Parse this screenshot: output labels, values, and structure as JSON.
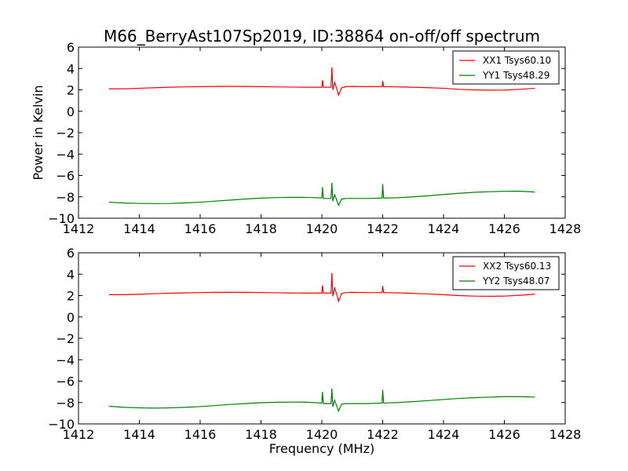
{
  "chart_data": {
    "type": "line",
    "title": "M66_BerryAst107Sp2019, ID:38864 on-off/off spectrum",
    "ylabel": "Power in Kelvin",
    "xlabel": "Frequency (MHz)",
    "xlim": [
      1412,
      1428
    ],
    "ylim": [
      -10,
      6
    ],
    "xticks": [
      1412,
      1414,
      1416,
      1418,
      1420,
      1422,
      1424,
      1426,
      1428
    ],
    "yticks": [
      6,
      4,
      2,
      0,
      -2,
      -4,
      -6,
      -8,
      -10
    ],
    "colors": {
      "xx": "#ff0000",
      "yy": "#008000",
      "frame": "#000000"
    },
    "panels": [
      {
        "legend_position": "top-right",
        "series": [
          {
            "name": "XX1 Tsys60.10",
            "color": "#ff0000",
            "points": [
              [
                1413.0,
                2.1
              ],
              [
                1413.5,
                2.1
              ],
              [
                1414.0,
                2.15
              ],
              [
                1414.5,
                2.2
              ],
              [
                1415.0,
                2.25
              ],
              [
                1415.5,
                2.28
              ],
              [
                1416.0,
                2.3
              ],
              [
                1416.5,
                2.32
              ],
              [
                1417.0,
                2.33
              ],
              [
                1417.5,
                2.32
              ],
              [
                1418.0,
                2.3
              ],
              [
                1418.5,
                2.28
              ],
              [
                1419.0,
                2.26
              ],
              [
                1419.5,
                2.25
              ],
              [
                1420.0,
                2.25
              ],
              [
                1420.02,
                2.9
              ],
              [
                1420.05,
                2.25
              ],
              [
                1420.3,
                2.25
              ],
              [
                1420.33,
                4.1
              ],
              [
                1420.36,
                2.0
              ],
              [
                1420.42,
                2.7
              ],
              [
                1420.5,
                2.0
              ],
              [
                1420.55,
                1.5
              ],
              [
                1420.65,
                2.2
              ],
              [
                1420.8,
                2.3
              ],
              [
                1421.0,
                2.32
              ],
              [
                1421.5,
                2.3
              ],
              [
                1421.98,
                2.3
              ],
              [
                1422.0,
                2.85
              ],
              [
                1422.03,
                2.3
              ],
              [
                1422.5,
                2.28
              ],
              [
                1423.0,
                2.25
              ],
              [
                1423.5,
                2.2
              ],
              [
                1424.0,
                2.15
              ],
              [
                1424.5,
                2.05
              ],
              [
                1425.0,
                2.0
              ],
              [
                1425.5,
                1.97
              ],
              [
                1426.0,
                1.98
              ],
              [
                1426.5,
                2.05
              ],
              [
                1427.0,
                2.15
              ]
            ]
          },
          {
            "name": "YY1 Tsys48.29",
            "color": "#008000",
            "points": [
              [
                1413.0,
                -8.5
              ],
              [
                1413.5,
                -8.58
              ],
              [
                1414.0,
                -8.62
              ],
              [
                1414.5,
                -8.63
              ],
              [
                1415.0,
                -8.62
              ],
              [
                1415.5,
                -8.57
              ],
              [
                1416.0,
                -8.5
              ],
              [
                1416.5,
                -8.4
              ],
              [
                1417.0,
                -8.3
              ],
              [
                1417.5,
                -8.2
              ],
              [
                1418.0,
                -8.12
              ],
              [
                1418.5,
                -8.07
              ],
              [
                1419.0,
                -8.04
              ],
              [
                1419.5,
                -8.05
              ],
              [
                1420.0,
                -8.1
              ],
              [
                1420.02,
                -7.1
              ],
              [
                1420.05,
                -8.15
              ],
              [
                1420.3,
                -8.15
              ],
              [
                1420.33,
                -6.7
              ],
              [
                1420.36,
                -8.4
              ],
              [
                1420.42,
                -7.8
              ],
              [
                1420.5,
                -8.4
              ],
              [
                1420.55,
                -8.8
              ],
              [
                1420.65,
                -8.2
              ],
              [
                1420.8,
                -8.15
              ],
              [
                1421.0,
                -8.15
              ],
              [
                1421.5,
                -8.15
              ],
              [
                1421.98,
                -8.12
              ],
              [
                1422.0,
                -6.8
              ],
              [
                1422.03,
                -8.12
              ],
              [
                1422.5,
                -8.08
              ],
              [
                1423.0,
                -8.0
              ],
              [
                1423.5,
                -7.9
              ],
              [
                1424.0,
                -7.78
              ],
              [
                1424.5,
                -7.67
              ],
              [
                1425.0,
                -7.58
              ],
              [
                1425.5,
                -7.52
              ],
              [
                1426.0,
                -7.48
              ],
              [
                1426.5,
                -7.47
              ],
              [
                1427.0,
                -7.55
              ]
            ]
          }
        ]
      },
      {
        "legend_position": "top-right",
        "series": [
          {
            "name": "XX2 Tsys60.13",
            "color": "#ff0000",
            "points": [
              [
                1413.0,
                2.08
              ],
              [
                1413.5,
                2.08
              ],
              [
                1414.0,
                2.12
              ],
              [
                1414.5,
                2.18
              ],
              [
                1415.0,
                2.22
              ],
              [
                1415.5,
                2.25
              ],
              [
                1416.0,
                2.28
              ],
              [
                1416.5,
                2.3
              ],
              [
                1417.0,
                2.3
              ],
              [
                1417.5,
                2.3
              ],
              [
                1418.0,
                2.28
              ],
              [
                1418.5,
                2.26
              ],
              [
                1419.0,
                2.24
              ],
              [
                1419.5,
                2.23
              ],
              [
                1420.0,
                2.23
              ],
              [
                1420.02,
                2.95
              ],
              [
                1420.05,
                2.23
              ],
              [
                1420.3,
                2.23
              ],
              [
                1420.33,
                4.1
              ],
              [
                1420.36,
                1.95
              ],
              [
                1420.42,
                2.7
              ],
              [
                1420.5,
                2.0
              ],
              [
                1420.55,
                1.45
              ],
              [
                1420.65,
                2.2
              ],
              [
                1420.8,
                2.28
              ],
              [
                1421.0,
                2.3
              ],
              [
                1421.5,
                2.28
              ],
              [
                1421.98,
                2.28
              ],
              [
                1422.0,
                2.9
              ],
              [
                1422.03,
                2.28
              ],
              [
                1422.5,
                2.25
              ],
              [
                1423.0,
                2.2
              ],
              [
                1423.5,
                2.15
              ],
              [
                1424.0,
                2.08
              ],
              [
                1424.5,
                2.0
              ],
              [
                1425.0,
                1.95
              ],
              [
                1425.5,
                1.93
              ],
              [
                1426.0,
                1.95
              ],
              [
                1426.5,
                2.03
              ],
              [
                1427.0,
                2.12
              ]
            ]
          },
          {
            "name": "YY2 Tsys48.07",
            "color": "#008000",
            "points": [
              [
                1413.0,
                -8.35
              ],
              [
                1413.5,
                -8.45
              ],
              [
                1414.0,
                -8.5
              ],
              [
                1414.5,
                -8.52
              ],
              [
                1415.0,
                -8.5
              ],
              [
                1415.5,
                -8.45
              ],
              [
                1416.0,
                -8.38
              ],
              [
                1416.5,
                -8.28
              ],
              [
                1417.0,
                -8.18
              ],
              [
                1417.5,
                -8.1
              ],
              [
                1418.0,
                -8.02
              ],
              [
                1418.5,
                -7.98
              ],
              [
                1419.0,
                -7.96
              ],
              [
                1419.5,
                -7.97
              ],
              [
                1420.0,
                -8.05
              ],
              [
                1420.02,
                -7.0
              ],
              [
                1420.05,
                -8.1
              ],
              [
                1420.3,
                -8.1
              ],
              [
                1420.33,
                -6.7
              ],
              [
                1420.36,
                -8.4
              ],
              [
                1420.42,
                -7.8
              ],
              [
                1420.5,
                -8.4
              ],
              [
                1420.55,
                -8.8
              ],
              [
                1420.65,
                -8.15
              ],
              [
                1420.8,
                -8.1
              ],
              [
                1421.0,
                -8.1
              ],
              [
                1421.5,
                -8.1
              ],
              [
                1421.98,
                -8.05
              ],
              [
                1422.0,
                -6.8
              ],
              [
                1422.03,
                -8.05
              ],
              [
                1422.5,
                -8.0
              ],
              [
                1423.0,
                -7.92
              ],
              [
                1423.5,
                -7.82
              ],
              [
                1424.0,
                -7.72
              ],
              [
                1424.5,
                -7.62
              ],
              [
                1425.0,
                -7.55
              ],
              [
                1425.5,
                -7.5
              ],
              [
                1426.0,
                -7.45
              ],
              [
                1426.5,
                -7.45
              ],
              [
                1427.0,
                -7.5
              ]
            ]
          }
        ]
      }
    ]
  }
}
